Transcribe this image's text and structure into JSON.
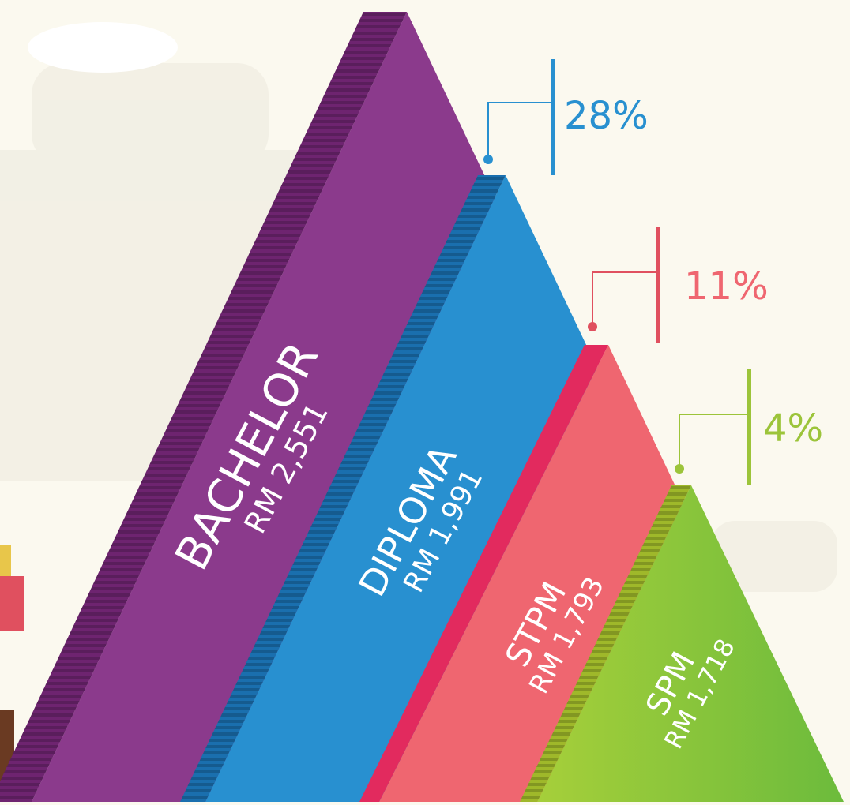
{
  "levels": [
    {
      "label": "BACHELOR",
      "salary": "RM 2,551"
    },
    {
      "label": "DIPLOMA",
      "salary": "RM 1,991",
      "share": "28%"
    },
    {
      "label": "STPM",
      "salary": "RM 1,793",
      "share": "11%"
    },
    {
      "label": "SPM",
      "salary": "RM 1,718",
      "share": "4%"
    }
  ]
}
